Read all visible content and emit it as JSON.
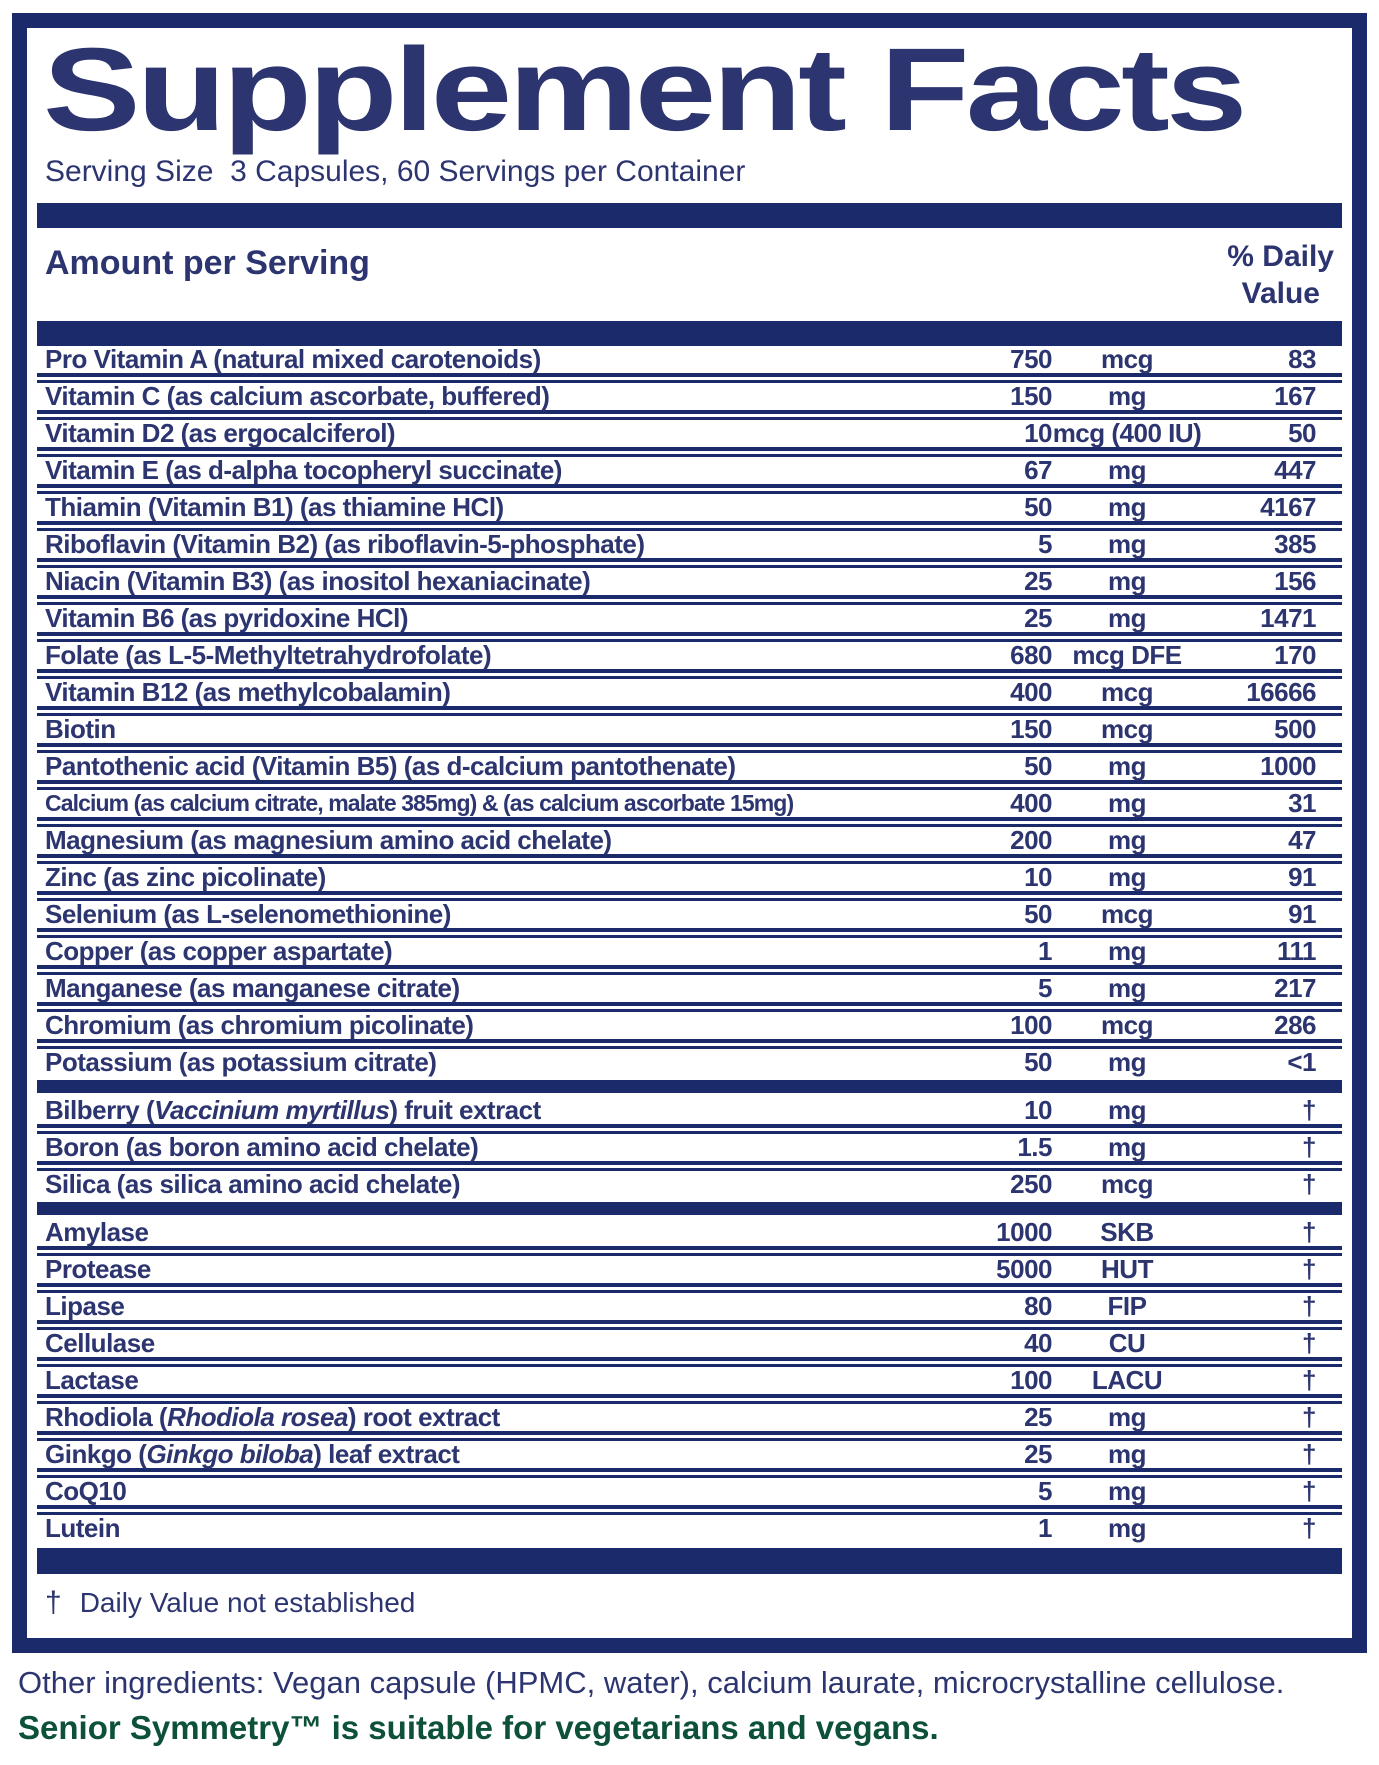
{
  "title": "Supplement Facts",
  "serving_line": "Serving Size  3 Capsules, 60 Servings per Container",
  "header": {
    "amount_label": "Amount per Serving",
    "dv_line1": "% Daily",
    "dv_line2": "Value"
  },
  "sections": [
    {
      "rows": [
        {
          "label": "Pro Vitamin A (natural mixed carotenoids)",
          "amount": "750",
          "unit": "mcg",
          "dv": "83"
        },
        {
          "label": "Vitamin C (as calcium ascorbate, buffered)",
          "amount": "150",
          "unit": "mg",
          "dv": "167"
        },
        {
          "label": "Vitamin D2 (as ergocalciferol)",
          "amount": "10",
          "unit": "mcg (400 IU)",
          "dv": "50"
        },
        {
          "label": "Vitamin E (as d-alpha tocopheryl succinate)",
          "amount": "67",
          "unit": "mg",
          "dv": "447"
        },
        {
          "label": "Thiamin (Vitamin B1) (as thiamine HCl)",
          "amount": "50",
          "unit": "mg",
          "dv": "4167"
        },
        {
          "label": "Riboflavin (Vitamin B2) (as riboflavin-5-phosphate)",
          "amount": "5",
          "unit": "mg",
          "dv": "385"
        },
        {
          "label": "Niacin (Vitamin B3) (as inositol hexaniacinate)",
          "amount": "25",
          "unit": "mg",
          "dv": "156"
        },
        {
          "label": "Vitamin B6 (as pyridoxine HCl)",
          "amount": "25",
          "unit": "mg",
          "dv": "1471"
        },
        {
          "label": "Folate (as L-5-Methyltetrahydrofolate)",
          "amount": "680",
          "unit": "mcg DFE",
          "dv": "170"
        },
        {
          "label": "Vitamin B12 (as methylcobalamin)",
          "amount": "400",
          "unit": "mcg",
          "dv": "16666"
        },
        {
          "label": "Biotin",
          "amount": "150",
          "unit": "mcg",
          "dv": "500"
        },
        {
          "label": "Pantothenic acid (Vitamin B5) (as d-calcium pantothenate)",
          "amount": "50",
          "unit": "mg",
          "dv": "1000"
        },
        {
          "label": "Calcium (as calcium citrate, malate 385mg) & (as calcium ascorbate 15mg)",
          "amount": "400",
          "unit": "mg",
          "dv": "31"
        },
        {
          "label": "Magnesium (as magnesium amino acid chelate)",
          "amount": "200",
          "unit": "mg",
          "dv": "47"
        },
        {
          "label": "Zinc (as zinc picolinate)",
          "amount": "10",
          "unit": "mg",
          "dv": "91"
        },
        {
          "label": "Selenium (as L-selenomethionine)",
          "amount": "50",
          "unit": "mcg",
          "dv": "91"
        },
        {
          "label": "Copper (as copper aspartate)",
          "amount": "1",
          "unit": "mg",
          "dv": "111"
        },
        {
          "label": "Manganese (as manganese citrate)",
          "amount": "5",
          "unit": "mg",
          "dv": "217"
        },
        {
          "label": "Chromium (as chromium picolinate)",
          "amount": "100",
          "unit": "mcg",
          "dv": "286"
        },
        {
          "label": "Potassium (as potassium citrate)",
          "amount": "50",
          "unit": "mg",
          "dv": "<1"
        }
      ]
    },
    {
      "rows": [
        {
          "label": "Bilberry (*Vaccinium myrtillus*) fruit extract",
          "amount": "10",
          "unit": "mg",
          "dv": "†"
        },
        {
          "label": "Boron (as boron amino acid chelate)",
          "amount": "1.5",
          "unit": "mg",
          "dv": "†"
        },
        {
          "label": "Silica (as silica amino acid chelate)",
          "amount": "250",
          "unit": "mcg",
          "dv": "†"
        }
      ]
    },
    {
      "rows": [
        {
          "label": "Amylase",
          "amount": "1000",
          "unit": "SKB",
          "dv": "†"
        },
        {
          "label": "Protease",
          "amount": "5000",
          "unit": "HUT",
          "dv": "†"
        },
        {
          "label": "Lipase",
          "amount": "80",
          "unit": "FIP",
          "dv": "†"
        },
        {
          "label": "Cellulase",
          "amount": "40",
          "unit": "CU",
          "dv": "†"
        },
        {
          "label": "Lactase",
          "amount": "100",
          "unit": "LACU",
          "dv": "†"
        },
        {
          "label": "Rhodiola (*Rhodiola rosea*) root extract",
          "amount": "25",
          "unit": "mg",
          "dv": "†"
        },
        {
          "label": "Ginkgo (*Ginkgo biloba*) leaf extract",
          "amount": "25",
          "unit": "mg",
          "dv": "†"
        },
        {
          "label": "CoQ10",
          "amount": "5",
          "unit": "mg",
          "dv": "†"
        },
        {
          "label": "Lutein",
          "amount": "1",
          "unit": "mg",
          "dv": "†"
        }
      ]
    }
  ],
  "footnote": {
    "symbol": "†",
    "text": "Daily Value not established"
  },
  "other_ingredients": "Other ingredients: Vegan capsule (HPMC, water), calcium laurate, microcrystalline cellulose.",
  "vegan_note": "Senior Symmetry™ is suitable for vegetarians and vegans.",
  "colors": {
    "navy": "#1b2a6a",
    "text_navy": "#2c356f",
    "green": "#0c5138"
  }
}
